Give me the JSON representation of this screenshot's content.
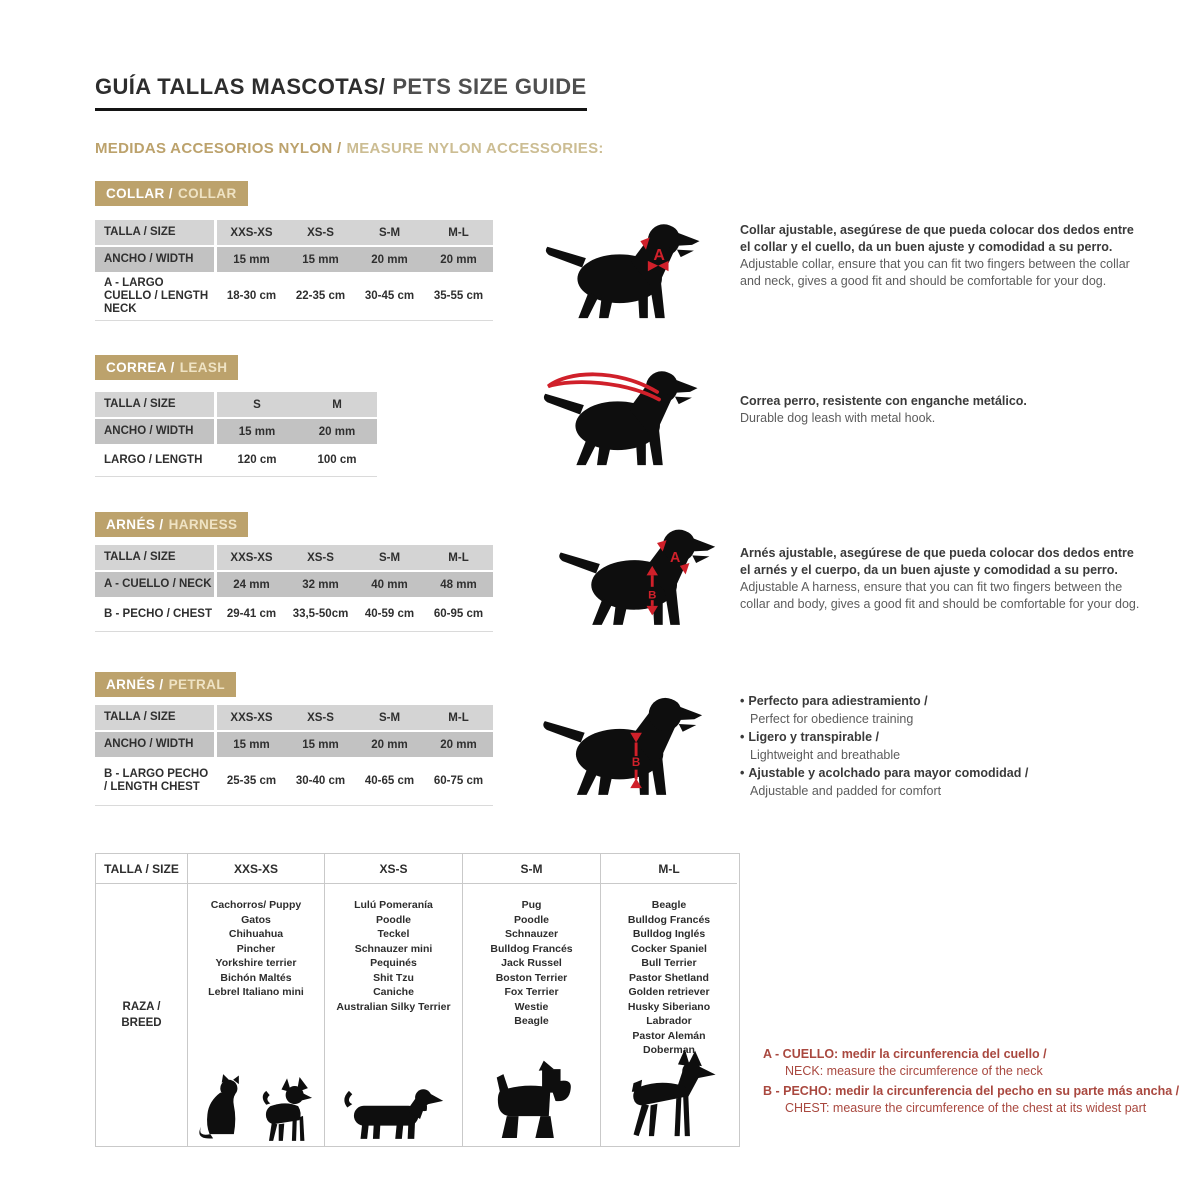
{
  "header": {
    "title_es": "GUÍA TALLAS MASCOTAS/",
    "title_en": "PETS SIZE GUIDE",
    "subtitle_es": "MEDIDAS ACCESORIOS NYLON /",
    "subtitle_en": "MEASURE NYLON ACCESSORIES:"
  },
  "colors": {
    "tan": "#bca26c",
    "red_accent": "#d0202a",
    "note_red": "#a9483f"
  },
  "collar": {
    "badge_es": "COLLAR /",
    "badge_en": "COLLAR",
    "table": {
      "col_label": "TALLA / SIZE",
      "sizes": [
        "XXS-XS",
        "XS-S",
        "S-M",
        "M-L"
      ],
      "rows": [
        {
          "label": "ANCHO / WIDTH",
          "values": [
            "15 mm",
            "15 mm",
            "20 mm",
            "20 mm"
          ]
        },
        {
          "label": "A - LARGO CUELLO / LENGTH NECK",
          "values": [
            "18-30 cm",
            "22-35 cm",
            "30-45 cm",
            "35-55 cm"
          ]
        }
      ]
    },
    "desc_es": "Collar ajustable, asegúrese de que pueda colocar dos dedos entre el collar y el cuello, da un buen ajuste y comodidad a su perro.",
    "desc_en": "Adjustable collar, ensure that you can fit two fingers between the collar and neck, gives a good fit and should be comfortable for your dog."
  },
  "leash": {
    "badge_es": "CORREA /",
    "badge_en": "LEASH",
    "table": {
      "col_label": "TALLA / SIZE",
      "sizes": [
        "S",
        "M"
      ],
      "rows": [
        {
          "label": "ANCHO / WIDTH",
          "values": [
            "15 mm",
            "20 mm"
          ]
        },
        {
          "label": "LARGO / LENGTH",
          "values": [
            "120 cm",
            "100 cm"
          ]
        }
      ]
    },
    "desc_es": "Correa perro, resistente con enganche metálico.",
    "desc_en": "Durable dog leash with metal hook."
  },
  "harness": {
    "badge_es": "ARNÉS /",
    "badge_en": "HARNESS",
    "table": {
      "col_label": "TALLA / SIZE",
      "sizes": [
        "XXS-XS",
        "XS-S",
        "S-M",
        "M-L"
      ],
      "rows": [
        {
          "label": "A - CUELLO / NECK",
          "values": [
            "24 mm",
            "32 mm",
            "40 mm",
            "48 mm"
          ]
        },
        {
          "label": "B - PECHO / CHEST",
          "values": [
            "29-41 cm",
            "33,5-50cm",
            "40-59 cm",
            "60-95 cm"
          ]
        }
      ]
    },
    "desc_es": "Arnés ajustable, asegúrese de que pueda colocar dos dedos entre el arnés y el cuerpo, da un buen ajuste y comodidad a su perro.",
    "desc_en": "Adjustable A harness, ensure that you can fit two fingers between the collar and body, gives a good fit and should be comfortable for your dog."
  },
  "petral": {
    "badge_es": "ARNÉS /",
    "badge_en": "PETRAL",
    "table": {
      "col_label": "TALLA / SIZE",
      "sizes": [
        "XXS-XS",
        "XS-S",
        "S-M",
        "M-L"
      ],
      "rows": [
        {
          "label": "ANCHO / WIDTH",
          "values": [
            "15 mm",
            "15 mm",
            "20 mm",
            "20 mm"
          ]
        },
        {
          "label": "B - LARGO PECHO / LENGTH CHEST",
          "values": [
            "25-35 cm",
            "30-40 cm",
            "40-65 cm",
            "60-75 cm"
          ]
        }
      ]
    },
    "bullets": [
      {
        "es": "Perfecto para adiestramiento /",
        "en": "Perfect for obedience training"
      },
      {
        "es": "Ligero y transpirable /",
        "en": "Lightweight and breathable"
      },
      {
        "es": "Ajustable y acolchado para mayor comodidad /",
        "en": "Adjustable and padded for comfort"
      }
    ]
  },
  "breeds": {
    "col_label": "TALLA / SIZE",
    "row_label": "RAZA / BREED",
    "sizes": [
      "XXS-XS",
      "XS-S",
      "S-M",
      "M-L"
    ],
    "columns": [
      [
        "Cachorros/ Puppy",
        "Gatos",
        "Chihuahua",
        "Pincher",
        "Yorkshire terrier",
        "Bichón Maltés",
        "Lebrel Italiano mini"
      ],
      [
        "Lulú Pomeranía",
        "Poodle",
        "Teckel",
        "Schnauzer mini",
        "Pequinés",
        "Shit Tzu",
        "Caniche",
        "Australian Silky Terrier"
      ],
      [
        "Pug",
        "Poodle",
        "Schnauzer",
        "Bulldog Francés",
        "Jack Russel",
        "Boston Terrier",
        "Fox Terrier",
        "Westie",
        "Beagle"
      ],
      [
        "Beagle",
        "Bulldog Francés",
        "Bulldog Inglés",
        "Cocker Spaniel",
        "Bull Terrier",
        "Pastor Shetland",
        "Golden retriever",
        "Husky Siberiano",
        "Labrador",
        "Pastor Alemán",
        "Doberman"
      ]
    ]
  },
  "notes": [
    {
      "bold": "A - CUELLO: medir la circunferencia del cuello /",
      "normal": "NECK: measure the circumference of the neck"
    },
    {
      "bold": "B - PECHO: medir la circunferencia del pecho en su parte más ancha /",
      "normal": "CHEST: measure the circumference of the chest at its widest part"
    }
  ],
  "annotations": {
    "letter_a": "A",
    "letter_b": "B"
  }
}
